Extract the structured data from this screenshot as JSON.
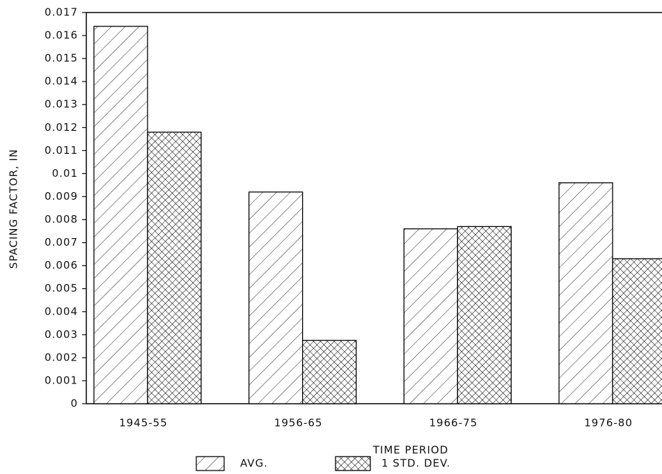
{
  "chart_data": {
    "type": "bar",
    "x_label": "TIME PERIOD",
    "y_label": "SPACING FACTOR, IN",
    "categories": [
      "1945-55",
      "1956-65",
      "1966-75",
      "1976-80"
    ],
    "series": [
      {
        "name": "AVG.",
        "color": "#000000",
        "pattern": "hatch",
        "values": [
          0.0164,
          0.0092,
          0.0076,
          0.0096
        ]
      },
      {
        "name": "1 STD. DEV.",
        "color": "#000000",
        "pattern": "crosshatch",
        "values": [
          0.0118,
          0.00275,
          0.0077,
          0.0063
        ]
      }
    ],
    "ylim": [
      0,
      0.017
    ],
    "yticks": [
      0,
      0.001,
      0.002,
      0.003,
      0.004,
      0.005,
      0.006,
      0.007,
      0.008,
      0.009,
      0.01,
      0.011,
      0.012,
      0.013,
      0.014,
      0.015,
      0.016,
      0.017
    ],
    "grid": false
  }
}
